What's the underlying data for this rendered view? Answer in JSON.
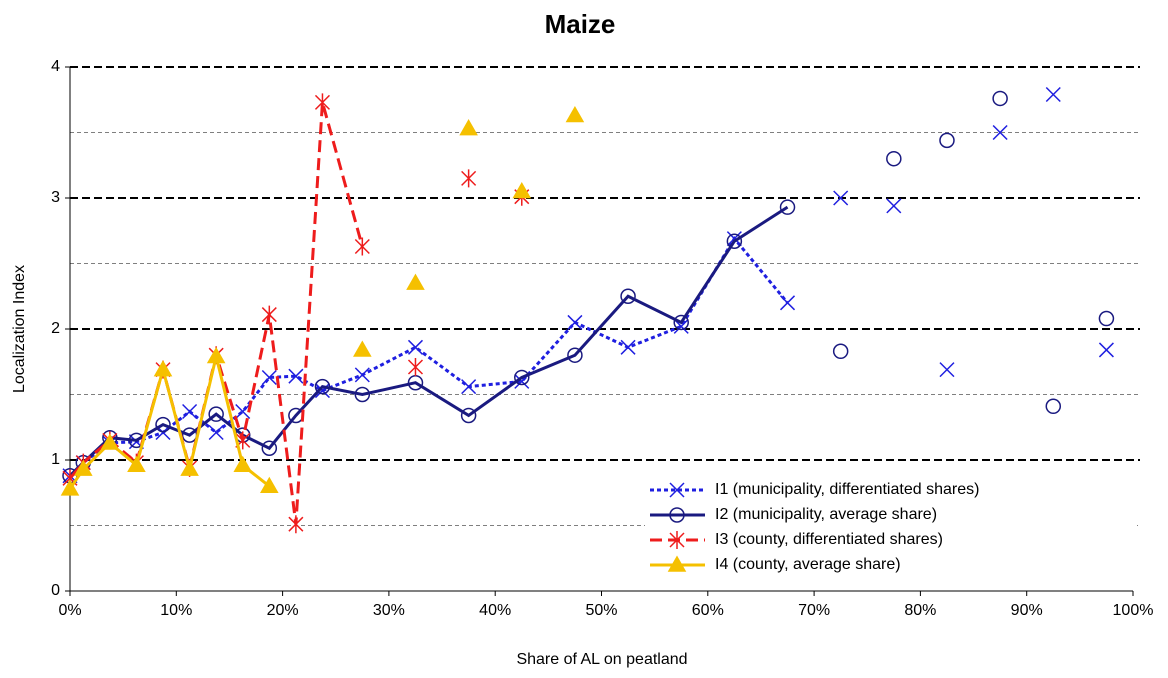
{
  "chart_data": {
    "type": "line",
    "title": "Maize",
    "x_label": "Share of AL on peatland",
    "y_label": "Localization Index",
    "x": [
      0,
      1.25,
      3.75,
      6.25,
      8.75,
      11.25,
      13.75,
      16.25,
      18.75,
      21.25,
      23.75,
      27.5,
      32.5,
      37.5,
      42.5,
      47.5,
      52.5,
      57.5,
      62.5,
      67.5,
      72.5,
      77.5,
      82.5,
      87.5,
      92.5,
      97.5
    ],
    "xlim": [
      0,
      100
    ],
    "xticks": [
      {
        "value": 0,
        "label": "0%"
      },
      {
        "value": 10,
        "label": "10%"
      },
      {
        "value": 20,
        "label": "20%"
      },
      {
        "value": 30,
        "label": "30%"
      },
      {
        "value": 40,
        "label": "40%"
      },
      {
        "value": 50,
        "label": "50%"
      },
      {
        "value": 60,
        "label": "60%"
      },
      {
        "value": 70,
        "label": "70%"
      },
      {
        "value": 80,
        "label": "80%"
      },
      {
        "value": 90,
        "label": "90%"
      },
      {
        "value": 100,
        "label": "100%"
      }
    ],
    "ylim": [
      0,
      4
    ],
    "yticks": [
      0,
      1,
      2,
      3,
      4
    ],
    "minor_gridlines": [
      0.5,
      1.5,
      2.5,
      3.5
    ],
    "grid": true,
    "legend": "lower right",
    "series": [
      {
        "name": "I1 (municipality, differentiated shares)",
        "color": "#1f1fe0",
        "dash": "dotted",
        "marker": "x",
        "values": [
          0.88,
          0.98,
          1.13,
          1.14,
          1.21,
          1.37,
          1.21,
          1.37,
          1.63,
          1.64,
          1.53,
          1.65,
          1.86,
          1.56,
          1.6,
          2.05,
          1.86,
          2.02,
          2.69,
          2.2,
          null,
          null,
          null,
          null,
          null,
          null
        ],
        "point_values": [
          null,
          null,
          null,
          null,
          null,
          null,
          null,
          null,
          null,
          null,
          null,
          null,
          null,
          null,
          null,
          null,
          null,
          null,
          null,
          null,
          3.0,
          2.94,
          1.69,
          3.5,
          3.79,
          1.84
        ]
      },
      {
        "name": "I2 (municipality, average share)",
        "color": "#1a1a80",
        "dash": "solid",
        "marker": "circle",
        "values": [
          0.88,
          0.98,
          1.17,
          1.15,
          1.27,
          1.19,
          1.35,
          1.19,
          1.09,
          1.34,
          1.56,
          1.5,
          1.59,
          1.34,
          1.63,
          1.8,
          2.25,
          2.05,
          2.67,
          2.93,
          null,
          null,
          null,
          null,
          null,
          null
        ],
        "point_values": [
          null,
          null,
          null,
          null,
          null,
          null,
          null,
          null,
          null,
          null,
          null,
          null,
          null,
          null,
          null,
          null,
          null,
          null,
          null,
          null,
          1.83,
          3.3,
          3.44,
          3.76,
          1.41,
          2.08
        ]
      },
      {
        "name": "I3 (county,  differentiated shares)",
        "color": "#ee1c1c",
        "dash": "dashed",
        "marker": "asterisk",
        "values": [
          0.86,
          0.98,
          1.15,
          0.98,
          1.69,
          0.94,
          1.8,
          1.15,
          2.11,
          0.51,
          3.73,
          2.63,
          null,
          null,
          null,
          null,
          null,
          null,
          null,
          null,
          null,
          null,
          null,
          null,
          null,
          null
        ],
        "point_values": [
          null,
          null,
          null,
          null,
          null,
          null,
          null,
          null,
          null,
          null,
          null,
          null,
          1.71,
          3.15,
          3.01,
          null,
          null,
          null,
          null,
          null,
          null,
          null,
          null,
          null,
          null,
          null
        ]
      },
      {
        "name": "I4 (county, average share)",
        "color": "#f5c000",
        "dash": "solid",
        "marker": "triangle",
        "values": [
          0.78,
          0.93,
          1.13,
          0.96,
          1.69,
          0.93,
          1.79,
          0.96,
          0.8,
          null,
          null,
          null,
          null,
          null,
          null,
          null,
          null,
          null,
          null,
          null,
          null,
          null,
          null,
          null,
          null,
          null
        ],
        "point_values": [
          null,
          null,
          null,
          null,
          null,
          null,
          null,
          null,
          null,
          null,
          null,
          1.84,
          2.35,
          3.53,
          3.05,
          3.63,
          null,
          null,
          null,
          null,
          null,
          null,
          null,
          null,
          null,
          null
        ]
      }
    ]
  }
}
